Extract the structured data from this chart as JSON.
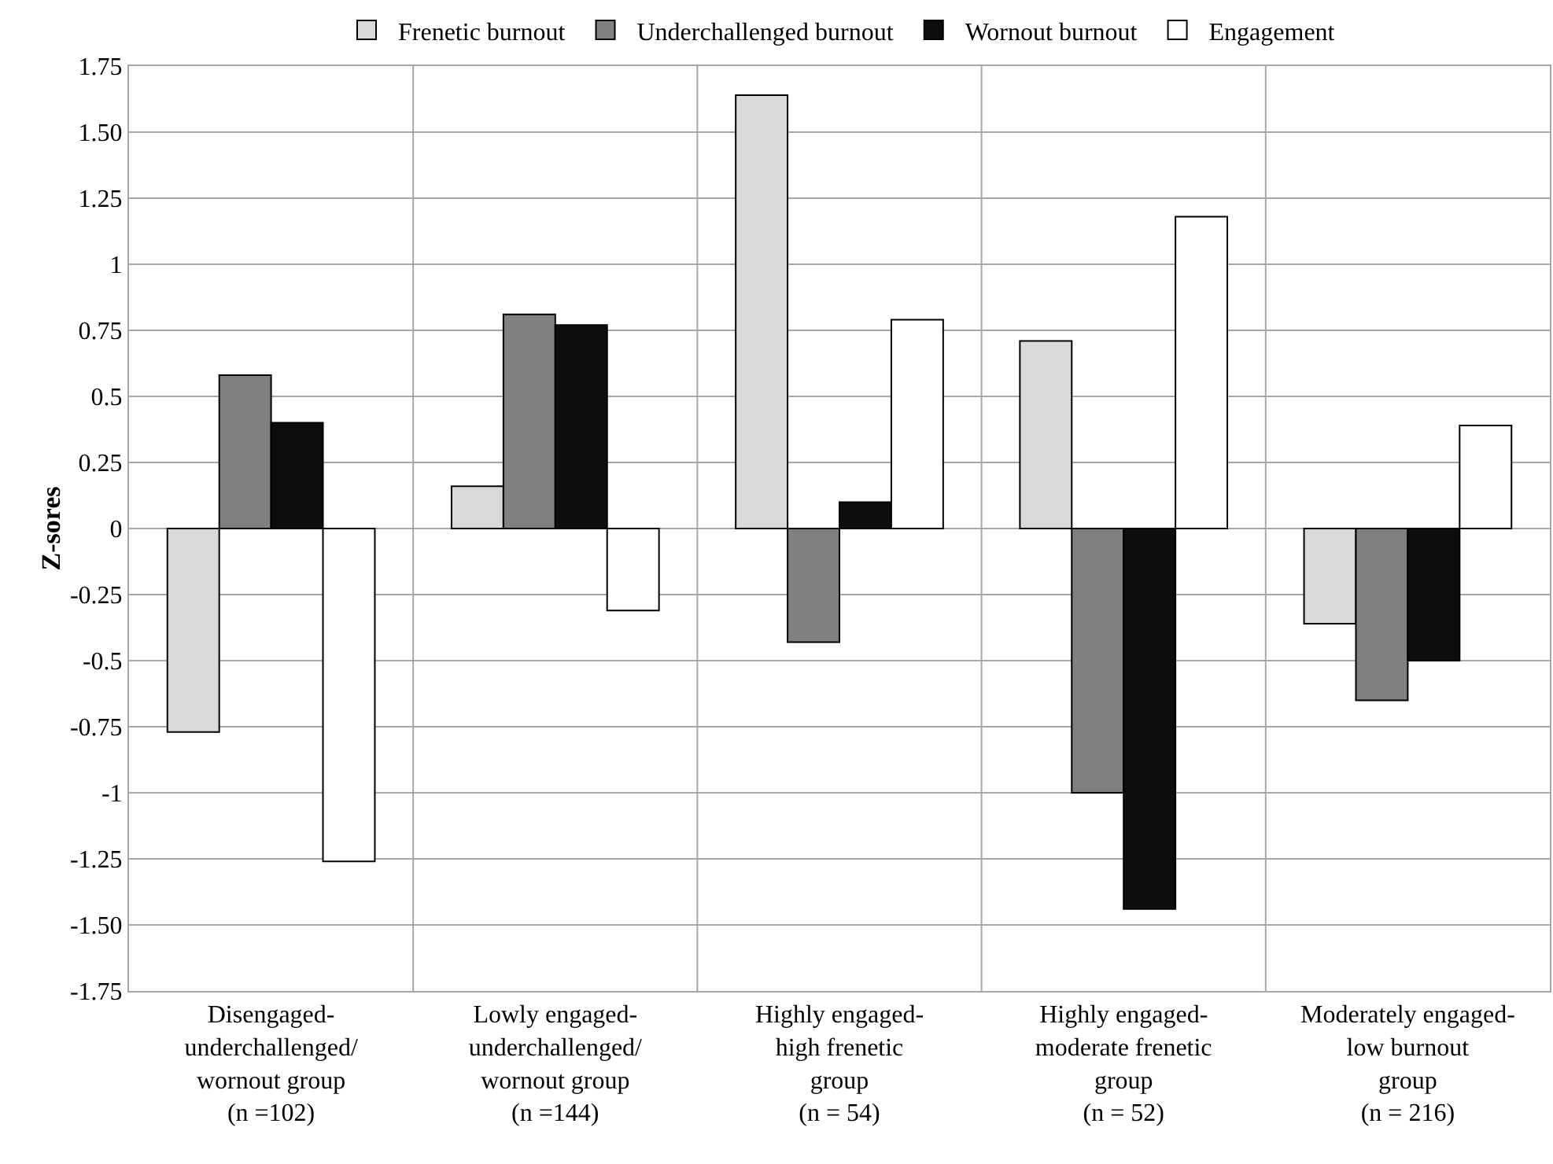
{
  "chart_data": {
    "type": "bar",
    "ylabel": "Z-sores",
    "categories": [
      "Disengaged-\nunderchallenged/\nwornout group\n(n =102)",
      "Lowly engaged-\nunderchallenged/\nwornout group\n(n =144)",
      "Highly engaged-\nhigh frenetic\ngroup\n(n = 54)",
      "Highly engaged-\nmoderate frenetic\ngroup\n(n = 52)",
      "Moderately engaged-\nlow burnout\ngroup\n(n = 216)"
    ],
    "series": [
      {
        "name": "Frenetic burnout",
        "color": "#d9d9d9",
        "values": [
          -0.77,
          0.16,
          1.64,
          0.71,
          -0.36
        ]
      },
      {
        "name": "Underchallenged burnout",
        "color": "#808080",
        "values": [
          0.58,
          0.81,
          -0.43,
          -1.0,
          -0.65
        ]
      },
      {
        "name": "Wornout burnout",
        "color": "#0d0d0d",
        "values": [
          0.4,
          0.77,
          0.1,
          -1.44,
          -0.5
        ]
      },
      {
        "name": "Engagement",
        "color": "#ffffff",
        "values": [
          -1.26,
          -0.31,
          0.79,
          1.18,
          0.39
        ]
      }
    ],
    "ylim": [
      -1.75,
      1.75
    ],
    "yticks": [
      1.75,
      {
        "value": 1.5,
        "label": "1.50"
      },
      1.25,
      1,
      0.75,
      0.5,
      0.25,
      0,
      -0.25,
      -0.5,
      -0.75,
      -1,
      -1.25,
      {
        "value": -1.5,
        "label": "-1.50"
      },
      -1.75
    ],
    "grid": true,
    "legend": "top"
  }
}
